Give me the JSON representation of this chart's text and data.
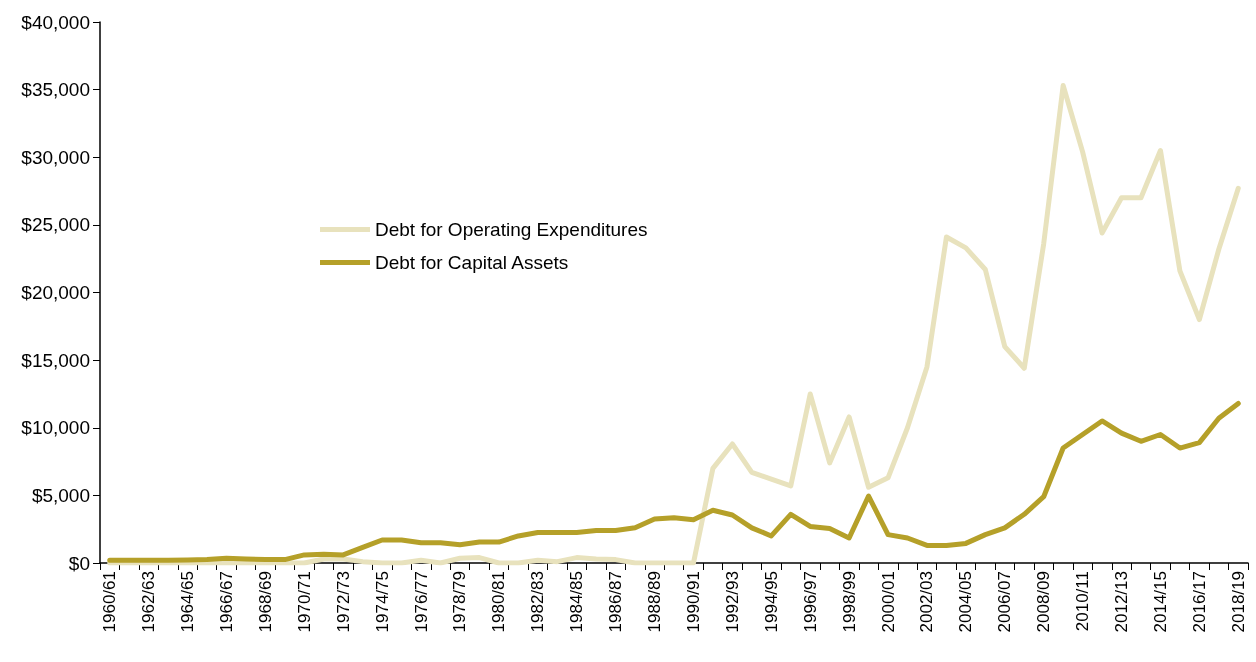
{
  "chart_data": {
    "type": "line",
    "categories": [
      "1960/61",
      null,
      "1962/63",
      null,
      "1964/65",
      null,
      "1966/67",
      null,
      "1968/69",
      null,
      "1970/71",
      null,
      "1972/73",
      null,
      "1974/75",
      null,
      "1976/77",
      null,
      "1978/79",
      null,
      "1980/81",
      null,
      "1982/83",
      null,
      "1984/85",
      null,
      "1986/87",
      null,
      "1988/89",
      null,
      "1990/91",
      null,
      "1992/93",
      null,
      "1994/95",
      null,
      "1996/97",
      null,
      "1998/99",
      null,
      "2000/01",
      null,
      "2002/03",
      null,
      "2004/05",
      null,
      "2006/07",
      null,
      "2008/09",
      null,
      "2010/11",
      null,
      "2012/13",
      null,
      "2014/15",
      null,
      "2016/17",
      null,
      "2018/19"
    ],
    "series": [
      {
        "name": "Debt for Operating Expenditures",
        "color": "#e8e2bd",
        "values": [
          0,
          0,
          0,
          0,
          0,
          0,
          0,
          0,
          0,
          0,
          0,
          300,
          300,
          100,
          0,
          0,
          200,
          0,
          350,
          400,
          0,
          0,
          200,
          100,
          400,
          300,
          250,
          0,
          0,
          0,
          0,
          7000,
          8800,
          6700,
          6200,
          5700,
          12500,
          7400,
          10800,
          5600,
          6300,
          10000,
          14500,
          24100,
          23300,
          21700,
          16000,
          14400,
          23600,
          35300,
          30400,
          24400,
          27000,
          27000,
          30500,
          21600,
          18000,
          23200,
          27700
        ]
      },
      {
        "name": "Debt for Capital Assets",
        "color": "#b5a029",
        "values": [
          200,
          200,
          200,
          200,
          220,
          250,
          350,
          300,
          250,
          250,
          600,
          650,
          600,
          1150,
          1700,
          1700,
          1500,
          1500,
          1350,
          1550,
          1550,
          2000,
          2250,
          2250,
          2250,
          2400,
          2400,
          2600,
          3250,
          3350,
          3200,
          3900,
          3550,
          2600,
          2000,
          3600,
          2700,
          2550,
          1850,
          4950,
          2100,
          1850,
          1300,
          1300,
          1450,
          2100,
          2600,
          3600,
          4900,
          8500,
          9500,
          10500,
          9600,
          9000,
          9500,
          8500,
          8900,
          10700,
          11800
        ]
      }
    ],
    "ylim": [
      0,
      40000
    ],
    "yticks": [
      {
        "value": 0,
        "label": "$0"
      },
      {
        "value": 5000,
        "label": "$5,000"
      },
      {
        "value": 10000,
        "label": "$10,000"
      },
      {
        "value": 15000,
        "label": "$15,000"
      },
      {
        "value": 20000,
        "label": "$20,000"
      },
      {
        "value": 25000,
        "label": "$25,000"
      },
      {
        "value": 30000,
        "label": "$30,000"
      },
      {
        "value": 35000,
        "label": "$35,000"
      },
      {
        "value": 40000,
        "label": "$40,000"
      }
    ],
    "grid": false,
    "legend": "top left",
    "marker": "none",
    "line_style": "solid"
  }
}
